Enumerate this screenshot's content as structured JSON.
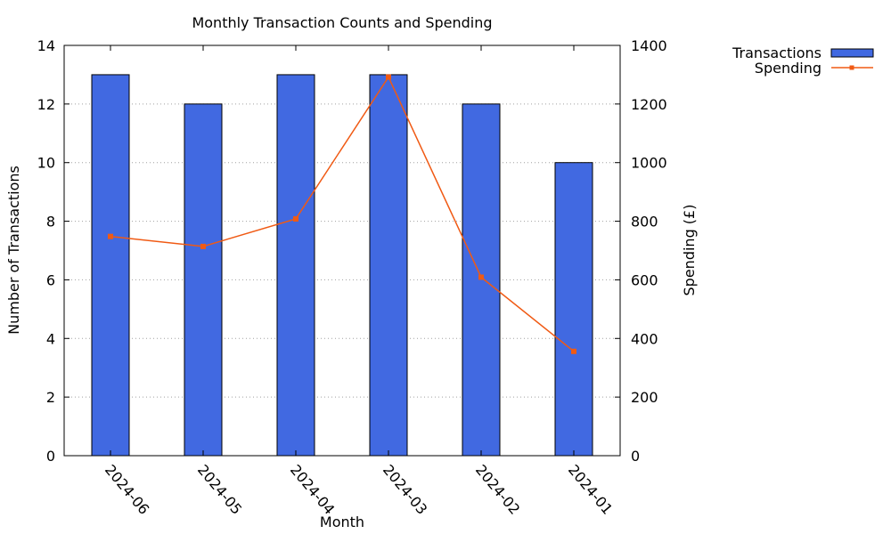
{
  "chart_data": {
    "type": "bar",
    "title": "Monthly Transaction Counts and Spending",
    "xlabel": "Month",
    "ylabel": "Number of Transactions",
    "y2label": "Spending (£)",
    "categories": [
      "2024-06",
      "2024-05",
      "2024-04",
      "2024-03",
      "2024-02",
      "2024-01"
    ],
    "ylim": [
      0,
      14
    ],
    "y2lim": [
      0,
      1400
    ],
    "yticks": [
      "0",
      "2",
      "4",
      "6",
      "8",
      "10",
      "12",
      "14"
    ],
    "y2ticks": [
      "0",
      "200",
      "400",
      "600",
      "800",
      "1000",
      "1200",
      "1400"
    ],
    "grid": true,
    "legend_position": "top-right outside",
    "series": [
      {
        "name": "Transactions",
        "type": "bar",
        "axis": "left",
        "values": [
          13,
          12,
          13,
          13,
          12,
          10
        ],
        "color": "#4169e1"
      },
      {
        "name": "Spending",
        "type": "line",
        "axis": "right",
        "marker": "square",
        "values": [
          748,
          714,
          808,
          1292,
          609,
          356
        ],
        "color": "#f05a14"
      }
    ]
  }
}
